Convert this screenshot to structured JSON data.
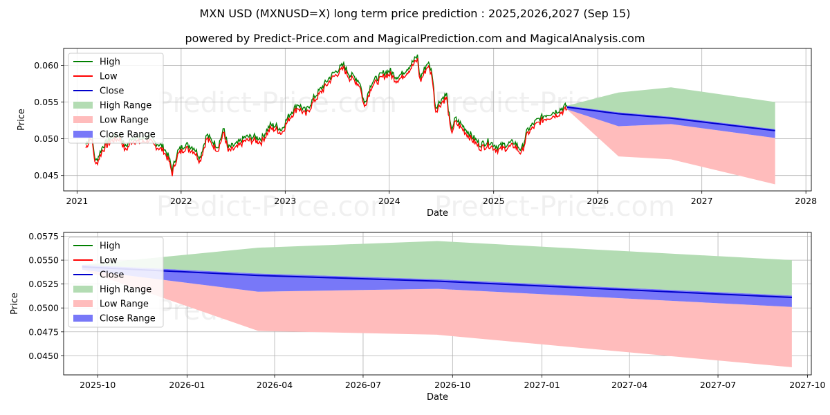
{
  "title": "MXN USD (MXNUSD=X) long term price prediction : 2025,2026,2027 (Sep 15)",
  "subtitle": "powered by Predict-Price.com and MagicalPrediction.com and MagicalAnalysis.com",
  "watermark": "Predict-Price.com",
  "legend": [
    "High",
    "Low",
    "Close",
    "High Range",
    "Low Range",
    "Close Range"
  ],
  "colors": {
    "high": "#008000",
    "low": "#ff0000",
    "close": "#0000cc",
    "high_range": "#b3dcb3",
    "low_range": "#ffbcbc",
    "close_range": "#7878f8"
  },
  "chart_data": [
    {
      "type": "line",
      "xlabel": "Date",
      "ylabel": "Price",
      "x_ticks": [
        "2021",
        "2022",
        "2023",
        "2024",
        "2025",
        "2026",
        "2027",
        "2028"
      ],
      "y_ticks": [
        "0.045",
        "0.050",
        "0.055",
        "0.060"
      ],
      "xlim": [
        "2020-11-15",
        "2028-01-20"
      ],
      "ylim": [
        0.0429,
        0.0623
      ],
      "grid": true,
      "legend_position": "top-left",
      "history": [
        [
          "2021-02-01",
          0.049
        ],
        [
          "2021-02-20",
          0.0505
        ],
        [
          "2021-03-08",
          0.0466
        ],
        [
          "2021-04-01",
          0.0487
        ],
        [
          "2021-05-01",
          0.05
        ],
        [
          "2021-06-01",
          0.0503
        ],
        [
          "2021-06-20",
          0.0486
        ],
        [
          "2021-07-15",
          0.05
        ],
        [
          "2021-08-15",
          0.0497
        ],
        [
          "2021-09-10",
          0.0501
        ],
        [
          "2021-09-25",
          0.0494
        ],
        [
          "2021-10-15",
          0.049
        ],
        [
          "2021-11-01",
          0.0486
        ],
        [
          "2021-11-20",
          0.0472
        ],
        [
          "2021-12-01",
          0.0455
        ],
        [
          "2021-12-20",
          0.048
        ],
        [
          "2022-01-15",
          0.049
        ],
        [
          "2022-02-15",
          0.0486
        ],
        [
          "2022-03-08",
          0.0472
        ],
        [
          "2022-04-01",
          0.0503
        ],
        [
          "2022-04-20",
          0.0495
        ],
        [
          "2022-05-10",
          0.0487
        ],
        [
          "2022-06-01",
          0.0511
        ],
        [
          "2022-06-15",
          0.0485
        ],
        [
          "2022-07-15",
          0.049
        ],
        [
          "2022-08-15",
          0.05
        ],
        [
          "2022-09-15",
          0.05
        ],
        [
          "2022-10-10",
          0.0498
        ],
        [
          "2022-11-10",
          0.0516
        ],
        [
          "2022-12-01",
          0.0515
        ],
        [
          "2022-12-20",
          0.051
        ],
        [
          "2023-01-15",
          0.053
        ],
        [
          "2023-02-15",
          0.0545
        ],
        [
          "2023-03-15",
          0.0535
        ],
        [
          "2023-04-15",
          0.0555
        ],
        [
          "2023-05-15",
          0.057
        ],
        [
          "2023-06-15",
          0.0585
        ],
        [
          "2023-07-25",
          0.0598
        ],
        [
          "2023-08-15",
          0.0585
        ],
        [
          "2023-09-01",
          0.0582
        ],
        [
          "2023-09-20",
          0.0575
        ],
        [
          "2023-10-06",
          0.0545
        ],
        [
          "2023-11-01",
          0.0575
        ],
        [
          "2023-11-20",
          0.058
        ],
        [
          "2023-12-15",
          0.0588
        ],
        [
          "2024-01-05",
          0.059
        ],
        [
          "2024-01-25",
          0.0582
        ],
        [
          "2024-02-15",
          0.0586
        ],
        [
          "2024-03-15",
          0.0598
        ],
        [
          "2024-04-09",
          0.061
        ],
        [
          "2024-04-19",
          0.058
        ],
        [
          "2024-05-15",
          0.0602
        ],
        [
          "2024-05-30",
          0.0588
        ],
        [
          "2024-06-12",
          0.054
        ],
        [
          "2024-07-05",
          0.0553
        ],
        [
          "2024-07-20",
          0.0558
        ],
        [
          "2024-08-05",
          0.051
        ],
        [
          "2024-08-20",
          0.0525
        ],
        [
          "2024-09-15",
          0.0515
        ],
        [
          "2024-10-15",
          0.0502
        ],
        [
          "2024-11-15",
          0.049
        ],
        [
          "2024-12-15",
          0.0494
        ],
        [
          "2025-01-15",
          0.0487
        ],
        [
          "2025-02-15",
          0.049
        ],
        [
          "2025-03-15",
          0.0493
        ],
        [
          "2025-04-09",
          0.0482
        ],
        [
          "2025-05-01",
          0.051
        ],
        [
          "2025-06-01",
          0.0522
        ],
        [
          "2025-07-01",
          0.053
        ],
        [
          "2025-08-01",
          0.0534
        ],
        [
          "2025-08-20",
          0.0537
        ],
        [
          "2025-09-15",
          0.0543
        ]
      ]
    },
    {
      "type": "area",
      "xlabel": "Date",
      "ylabel": "Price",
      "x_ticks": [
        "2025-10",
        "2026-01",
        "2026-04",
        "2026-07",
        "2026-10",
        "2027-01",
        "2027-04",
        "2027-07",
        "2027-10"
      ],
      "y_ticks": [
        "0.0450",
        "0.0475",
        "0.0500",
        "0.0525",
        "0.0550",
        "0.0575"
      ],
      "xlim": [
        "2025-08-27",
        "2027-10-05"
      ],
      "ylim": [
        0.043,
        0.0579
      ],
      "grid": true,
      "legend_position": "top-left",
      "dates": [
        "2025-09-15",
        "2026-03-15",
        "2026-09-15",
        "2027-09-15"
      ],
      "high_range_upper": [
        0.0545,
        0.0563,
        0.057,
        0.055
      ],
      "low_range_lower": [
        0.054,
        0.0476,
        0.0472,
        0.0438
      ],
      "close": [
        0.0543,
        0.0534,
        0.0528,
        0.0511
      ],
      "close_range_lower": [
        0.054,
        0.0517,
        0.052,
        0.0501
      ],
      "close_range_upper": [
        0.0545,
        0.0536,
        0.053,
        0.0513
      ]
    }
  ]
}
